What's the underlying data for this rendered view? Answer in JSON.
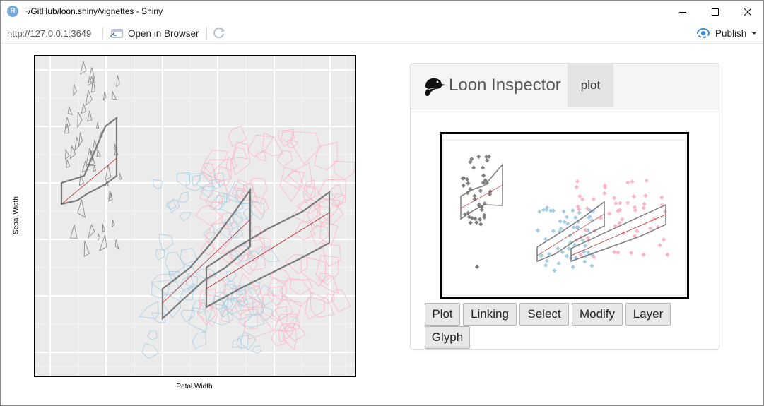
{
  "window": {
    "title": "~/GitHub/loon.shiny/vignettes - Shiny",
    "app_icon_letter": "R"
  },
  "toolbar": {
    "url": "http://127.0.0.1:3649",
    "open_browser_label": "Open in Browser",
    "publish_label": "Publish"
  },
  "main_plot": {
    "xlabel": "Petal.Width",
    "ylabel": "Sepal.Width",
    "panel_bg": "#ebebeb",
    "series_colors": [
      "#808080",
      "#a6cee3",
      "#fbb4c4"
    ]
  },
  "inspector": {
    "title": "Loon Inspector",
    "tab_plot": "plot",
    "buttons": [
      "Plot",
      "Linking",
      "Select",
      "Modify",
      "Layer",
      "Glyph"
    ]
  }
}
